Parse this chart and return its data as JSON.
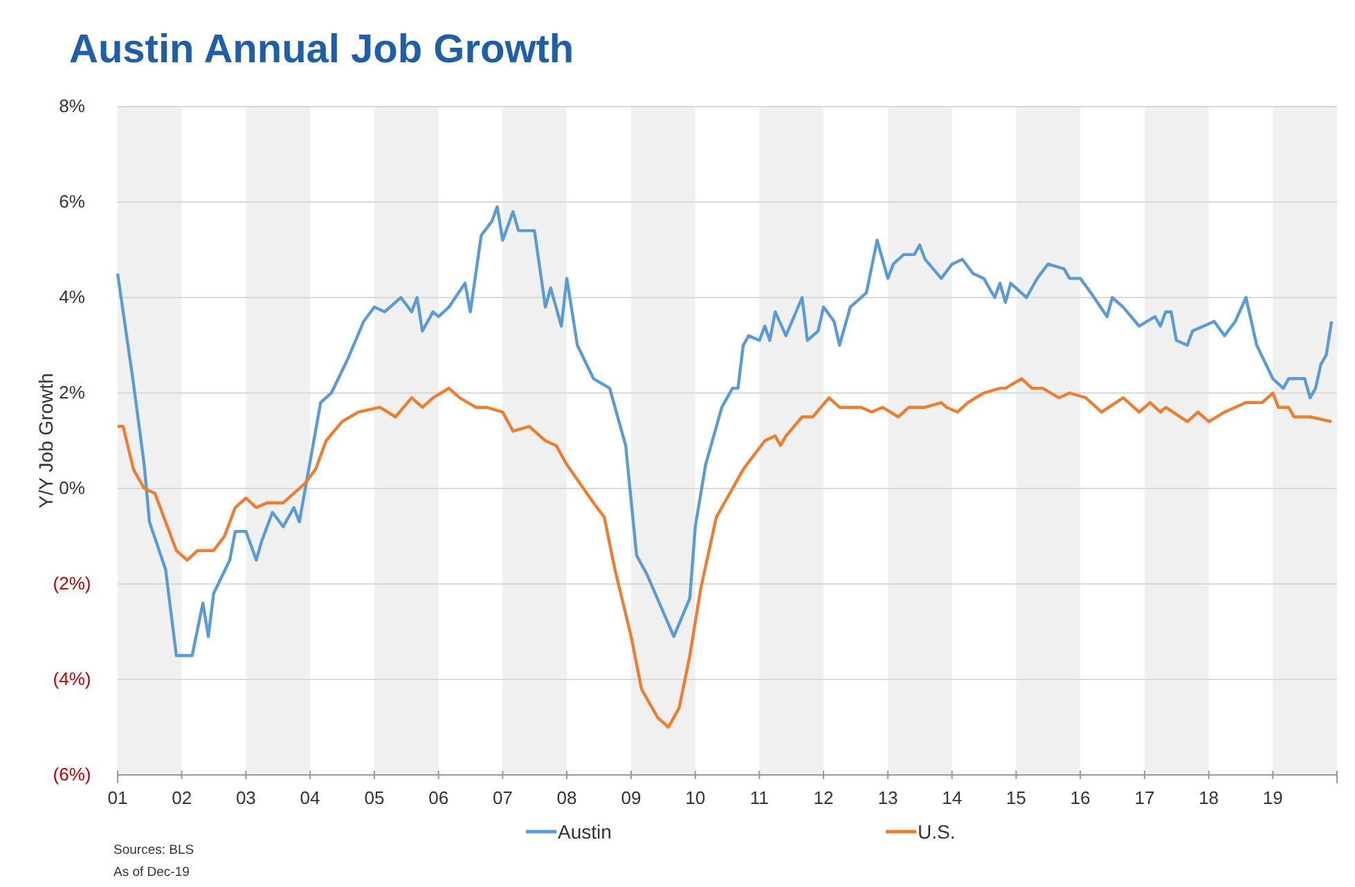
{
  "chart_data": {
    "type": "line",
    "title": "Austin Annual Job Growth",
    "ylabel": "Y/Y Job Growth",
    "annotations": [
      "Sources: BLS",
      "As of Dec-19"
    ],
    "xlim": [
      "2001-01",
      "2020-01"
    ],
    "xticks": [
      {
        "value": "2001-01",
        "label": "01"
      },
      {
        "value": "2002-01",
        "label": "02"
      },
      {
        "value": "2003-01",
        "label": "03"
      },
      {
        "value": "2004-01",
        "label": "04"
      },
      {
        "value": "2005-01",
        "label": "05"
      },
      {
        "value": "2006-01",
        "label": "06"
      },
      {
        "value": "2007-01",
        "label": "07"
      },
      {
        "value": "2008-01",
        "label": "08"
      },
      {
        "value": "2009-01",
        "label": "09"
      },
      {
        "value": "2010-01",
        "label": "10"
      },
      {
        "value": "2011-01",
        "label": "11"
      },
      {
        "value": "2012-01",
        "label": "12"
      },
      {
        "value": "2013-01",
        "label": "13"
      },
      {
        "value": "2014-01",
        "label": "14"
      },
      {
        "value": "2015-01",
        "label": "15"
      },
      {
        "value": "2016-01",
        "label": "16"
      },
      {
        "value": "2017-01",
        "label": "17"
      },
      {
        "value": "2018-01",
        "label": "18"
      },
      {
        "value": "2019-01",
        "label": "19"
      },
      {
        "value": "2020-01",
        "label": null
      }
    ],
    "ylim": [
      -6,
      8
    ],
    "yticks": [
      {
        "value": -6,
        "label": "(6%)"
      },
      {
        "value": -4,
        "label": "(4%)"
      },
      {
        "value": -2,
        "label": "(2%)"
      },
      {
        "value": 0,
        "label": "0%"
      },
      {
        "value": 2,
        "label": "2%"
      },
      {
        "value": 4,
        "label": "4%"
      },
      {
        "value": 6,
        "label": "6%"
      },
      {
        "value": 8,
        "label": "8%"
      }
    ],
    "grid": "y",
    "legend": "bottom",
    "marker": "none",
    "line_style": "solid",
    "bands": [
      {
        "axis": "x",
        "from": "2001-01",
        "to": "2002-01",
        "color": "#f0f0f0"
      },
      {
        "axis": "x",
        "from": "2003-01",
        "to": "2004-01",
        "color": "#f0f0f0"
      },
      {
        "axis": "x",
        "from": "2005-01",
        "to": "2006-01",
        "color": "#f0f0f0"
      },
      {
        "axis": "x",
        "from": "2007-01",
        "to": "2008-01",
        "color": "#f0f0f0"
      },
      {
        "axis": "x",
        "from": "2009-01",
        "to": "2010-01",
        "color": "#f0f0f0"
      },
      {
        "axis": "x",
        "from": "2011-01",
        "to": "2012-01",
        "color": "#f0f0f0"
      },
      {
        "axis": "x",
        "from": "2013-01",
        "to": "2014-01",
        "color": "#f0f0f0"
      },
      {
        "axis": "x",
        "from": "2015-01",
        "to": "2016-01",
        "color": "#f0f0f0"
      },
      {
        "axis": "x",
        "from": "2017-01",
        "to": "2018-01",
        "color": "#f0f0f0"
      },
      {
        "axis": "x",
        "from": "2019-01",
        "to": "2020-01",
        "color": "#f0f0f0"
      }
    ],
    "series": [
      {
        "name": "Austin",
        "color": "#5b9bd5",
        "x": [
          "2001-01",
          "2001-04",
          "2001-06",
          "2001-07",
          "2001-10",
          "2001-12",
          "2002-03",
          "2002-05",
          "2002-06",
          "2002-07",
          "2002-10",
          "2002-11",
          "2003-01",
          "2003-03",
          "2003-04",
          "2003-06",
          "2003-08",
          "2003-10",
          "2003-11",
          "2004-03",
          "2004-05",
          "2004-08",
          "2004-11",
          "2005-01",
          "2005-03",
          "2005-06",
          "2005-08",
          "2005-09",
          "2005-10",
          "2005-12",
          "2006-01",
          "2006-03",
          "2006-06",
          "2006-07",
          "2006-09",
          "2006-11",
          "2006-12",
          "2007-01",
          "2007-03",
          "2007-04",
          "2007-07",
          "2007-09",
          "2007-10",
          "2007-12",
          "2008-01",
          "2008-03",
          "2008-06",
          "2008-09",
          "2008-12",
          "2009-02",
          "2009-04",
          "2009-09",
          "2009-12",
          "2010-01",
          "2010-03",
          "2010-06",
          "2010-08",
          "2010-09",
          "2010-10",
          "2010-11",
          "2011-01",
          "2011-02",
          "2011-03",
          "2011-04",
          "2011-06",
          "2011-09",
          "2011-10",
          "2011-12",
          "2012-01",
          "2012-03",
          "2012-04",
          "2012-06",
          "2012-09",
          "2012-11",
          "2013-01",
          "2013-02",
          "2013-04",
          "2013-06",
          "2013-07",
          "2013-08",
          "2013-11",
          "2014-01",
          "2014-03",
          "2014-05",
          "2014-07",
          "2014-09",
          "2014-10",
          "2014-11",
          "2014-12",
          "2015-03",
          "2015-05",
          "2015-07",
          "2015-10",
          "2015-11",
          "2016-01",
          "2016-03",
          "2016-06",
          "2016-07",
          "2016-09",
          "2016-12",
          "2017-03",
          "2017-04",
          "2017-05",
          "2017-06",
          "2017-07",
          "2017-09",
          "2017-10",
          "2017-12",
          "2018-02",
          "2018-04",
          "2018-06",
          "2018-08",
          "2018-10",
          "2019-01",
          "2019-03",
          "2019-04",
          "2019-07",
          "2019-08",
          "2019-09",
          "2019-10",
          "2019-11",
          "2019-12"
        ],
        "values": [
          4.5,
          2.2,
          0.5,
          -0.7,
          -1.7,
          -3.5,
          -3.5,
          -2.4,
          -3.1,
          -2.2,
          -1.5,
          -0.9,
          -0.9,
          -1.5,
          -1.1,
          -0.5,
          -0.8,
          -0.4,
          -0.7,
          1.8,
          2.0,
          2.7,
          3.5,
          3.8,
          3.7,
          4.0,
          3.7,
          4.0,
          3.3,
          3.7,
          3.6,
          3.8,
          4.3,
          3.7,
          5.3,
          5.6,
          5.9,
          5.2,
          5.8,
          5.4,
          5.4,
          3.8,
          4.2,
          3.4,
          4.4,
          3.0,
          2.3,
          2.1,
          0.9,
          -1.4,
          -1.8,
          -3.1,
          -2.3,
          -0.8,
          0.5,
          1.7,
          2.1,
          2.1,
          3.0,
          3.2,
          3.1,
          3.4,
          3.1,
          3.7,
          3.2,
          4.0,
          3.1,
          3.3,
          3.8,
          3.5,
          3.0,
          3.8,
          4.1,
          5.2,
          4.4,
          4.7,
          4.9,
          4.9,
          5.1,
          4.8,
          4.4,
          4.7,
          4.8,
          4.5,
          4.4,
          4.0,
          4.3,
          3.9,
          4.3,
          4.0,
          4.4,
          4.7,
          4.6,
          4.4,
          4.4,
          4.1,
          3.6,
          4.0,
          3.8,
          3.4,
          3.6,
          3.4,
          3.7,
          3.7,
          3.1,
          3.0,
          3.3,
          3.4,
          3.5,
          3.2,
          3.5,
          4.0,
          3.0,
          2.3,
          2.1,
          2.3,
          2.3,
          1.9,
          2.1,
          2.6,
          2.8,
          3.5
        ]
      },
      {
        "name": "U.S.",
        "color": "#ed7d31",
        "x": [
          "2001-01",
          "2001-02",
          "2001-04",
          "2001-06",
          "2001-08",
          "2001-10",
          "2001-12",
          "2002-02",
          "2002-04",
          "2002-07",
          "2002-09",
          "2002-11",
          "2003-01",
          "2003-03",
          "2003-05",
          "2003-08",
          "2003-10",
          "2003-12",
          "2004-02",
          "2004-04",
          "2004-07",
          "2004-10",
          "2005-02",
          "2005-05",
          "2005-08",
          "2005-10",
          "2005-12",
          "2006-03",
          "2006-05",
          "2006-08",
          "2006-10",
          "2007-01",
          "2007-03",
          "2007-06",
          "2007-09",
          "2007-11",
          "2008-01",
          "2008-06",
          "2008-08",
          "2008-10",
          "2009-01",
          "2009-03",
          "2009-06",
          "2009-08",
          "2009-10",
          "2009-12",
          "2010-02",
          "2010-05",
          "2010-08",
          "2010-10",
          "2010-12",
          "2011-02",
          "2011-04",
          "2011-05",
          "2011-06",
          "2011-09",
          "2011-11",
          "2012-02",
          "2012-04",
          "2012-08",
          "2012-10",
          "2012-12",
          "2013-03",
          "2013-05",
          "2013-08",
          "2013-11",
          "2013-12",
          "2014-02",
          "2014-04",
          "2014-07",
          "2014-10",
          "2014-11",
          "2015-02",
          "2015-04",
          "2015-06",
          "2015-09",
          "2015-11",
          "2016-02",
          "2016-05",
          "2016-09",
          "2016-12",
          "2017-02",
          "2017-04",
          "2017-05",
          "2017-09",
          "2017-11",
          "2018-01",
          "2018-04",
          "2018-08",
          "2018-11",
          "2019-01",
          "2019-02",
          "2019-04",
          "2019-05",
          "2019-08",
          "2019-12"
        ],
        "values": [
          1.3,
          1.3,
          0.4,
          0.0,
          -0.1,
          -0.7,
          -1.3,
          -1.5,
          -1.3,
          -1.3,
          -1.0,
          -0.4,
          -0.2,
          -0.4,
          -0.3,
          -0.3,
          -0.1,
          0.1,
          0.4,
          1.0,
          1.4,
          1.6,
          1.7,
          1.5,
          1.9,
          1.7,
          1.9,
          2.1,
          1.9,
          1.7,
          1.7,
          1.6,
          1.2,
          1.3,
          1.0,
          0.9,
          0.5,
          -0.3,
          -0.6,
          -1.7,
          -3.1,
          -4.2,
          -4.8,
          -5.0,
          -4.6,
          -3.5,
          -2.1,
          -0.6,
          0.0,
          0.4,
          0.7,
          1.0,
          1.1,
          0.9,
          1.1,
          1.5,
          1.5,
          1.9,
          1.7,
          1.7,
          1.6,
          1.7,
          1.5,
          1.7,
          1.7,
          1.8,
          1.7,
          1.6,
          1.8,
          2.0,
          2.1,
          2.1,
          2.3,
          2.1,
          2.1,
          1.9,
          2.0,
          1.9,
          1.6,
          1.9,
          1.6,
          1.8,
          1.6,
          1.7,
          1.4,
          1.6,
          1.4,
          1.6,
          1.8,
          1.8,
          2.0,
          1.7,
          1.7,
          1.5,
          1.5,
          1.4
        ]
      }
    ]
  }
}
